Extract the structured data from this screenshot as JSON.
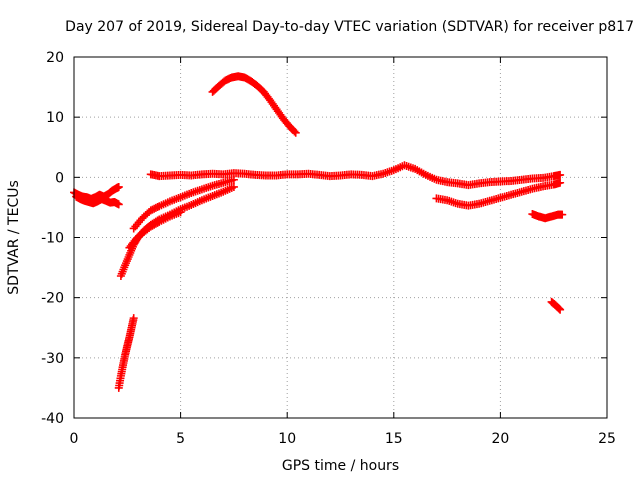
{
  "chart_data": {
    "type": "scatter",
    "title": "Day 207 of 2019, Sidereal Day-to-day VTEC variation (SDTVAR) for receiver p817",
    "xlabel": "GPS time / hours",
    "ylabel": "SDTVAR / TECUs",
    "xlim": [
      0,
      25
    ],
    "ylim": [
      -40,
      20
    ],
    "xticks": [
      0,
      5,
      10,
      15,
      20,
      25
    ],
    "yticks": [
      -40,
      -30,
      -20,
      -10,
      0,
      10,
      20
    ],
    "grid": true,
    "marker": "+",
    "color": "#ff0000",
    "series": [
      {
        "name": "segment-early-left",
        "points": [
          [
            0.0,
            -2.5
          ],
          [
            0.2,
            -2.9
          ],
          [
            0.4,
            -3.2
          ],
          [
            0.6,
            -3.3
          ],
          [
            0.8,
            -3.6
          ],
          [
            1.0,
            -3.3
          ],
          [
            1.2,
            -2.9
          ],
          [
            1.4,
            -3.2
          ],
          [
            1.6,
            -2.8
          ],
          [
            1.8,
            -2.2
          ],
          [
            2.0,
            -1.8
          ],
          [
            2.1,
            -1.6
          ],
          [
            0.1,
            -3.2
          ],
          [
            0.3,
            -3.6
          ],
          [
            0.5,
            -3.9
          ],
          [
            0.7,
            -4.1
          ],
          [
            0.9,
            -4.3
          ],
          [
            1.1,
            -4.0
          ],
          [
            1.3,
            -3.6
          ],
          [
            1.5,
            -3.9
          ],
          [
            1.7,
            -4.2
          ],
          [
            1.9,
            -4.1
          ],
          [
            2.1,
            -4.5
          ]
        ]
      },
      {
        "name": "segment-long-flat",
        "points": [
          [
            3.6,
            0.5
          ],
          [
            4.0,
            0.2
          ],
          [
            4.5,
            0.3
          ],
          [
            5.0,
            0.4
          ],
          [
            5.5,
            0.3
          ],
          [
            6.0,
            0.5
          ],
          [
            6.5,
            0.6
          ],
          [
            7.0,
            0.5
          ],
          [
            7.5,
            0.7
          ],
          [
            8.0,
            0.6
          ],
          [
            8.5,
            0.4
          ],
          [
            9.0,
            0.3
          ],
          [
            9.5,
            0.3
          ],
          [
            10.0,
            0.5
          ],
          [
            10.5,
            0.5
          ],
          [
            11.0,
            0.6
          ],
          [
            11.5,
            0.4
          ],
          [
            12.0,
            0.2
          ],
          [
            12.5,
            0.3
          ],
          [
            13.0,
            0.5
          ],
          [
            13.5,
            0.4
          ],
          [
            14.0,
            0.2
          ],
          [
            14.5,
            0.6
          ],
          [
            15.0,
            1.2
          ],
          [
            15.5,
            2.0
          ],
          [
            16.0,
            1.4
          ],
          [
            16.5,
            0.4
          ],
          [
            17.0,
            -0.4
          ],
          [
            17.5,
            -0.8
          ],
          [
            18.0,
            -1.0
          ],
          [
            18.5,
            -1.3
          ],
          [
            19.0,
            -1.0
          ],
          [
            19.5,
            -0.8
          ],
          [
            20.0,
            -0.7
          ],
          [
            20.5,
            -0.6
          ],
          [
            21.0,
            -0.4
          ],
          [
            21.5,
            -0.2
          ],
          [
            22.0,
            -0.1
          ],
          [
            22.5,
            0.2
          ],
          [
            22.8,
            0.4
          ]
        ]
      },
      {
        "name": "segment-arc",
        "points": [
          [
            6.5,
            14.2
          ],
          [
            6.8,
            15.2
          ],
          [
            7.1,
            16.1
          ],
          [
            7.4,
            16.6
          ],
          [
            7.7,
            16.8
          ],
          [
            8.0,
            16.6
          ],
          [
            8.3,
            16.0
          ],
          [
            8.6,
            15.2
          ],
          [
            8.9,
            14.2
          ],
          [
            9.2,
            12.8
          ],
          [
            9.5,
            11.3
          ],
          [
            9.8,
            9.8
          ],
          [
            10.1,
            8.5
          ],
          [
            10.4,
            7.4
          ]
        ]
      },
      {
        "name": "segment-rise-early",
        "points": [
          [
            2.2,
            -16.4
          ],
          [
            2.4,
            -14.6
          ],
          [
            2.6,
            -12.9
          ],
          [
            2.8,
            -11.2
          ],
          [
            3.0,
            -10.0
          ],
          [
            3.3,
            -8.8
          ],
          [
            3.6,
            -7.9
          ],
          [
            4.0,
            -7.0
          ],
          [
            4.5,
            -6.2
          ],
          [
            5.0,
            -5.3
          ],
          [
            5.5,
            -4.6
          ],
          [
            6.0,
            -3.8
          ],
          [
            6.5,
            -3.1
          ],
          [
            7.0,
            -2.4
          ],
          [
            7.5,
            -1.6
          ],
          [
            2.6,
            -11.7
          ],
          [
            2.9,
            -10.3
          ],
          [
            3.2,
            -9.3
          ],
          [
            3.6,
            -8.2
          ],
          [
            4.0,
            -7.4
          ],
          [
            4.5,
            -6.5
          ],
          [
            5.0,
            -5.8
          ]
        ]
      },
      {
        "name": "segment-upper-rise",
        "points": [
          [
            2.8,
            -8.5
          ],
          [
            3.2,
            -6.8
          ],
          [
            3.6,
            -5.5
          ],
          [
            4.0,
            -4.8
          ],
          [
            4.5,
            -4.0
          ],
          [
            5.0,
            -3.3
          ],
          [
            5.5,
            -2.6
          ],
          [
            6.0,
            -2.0
          ],
          [
            6.5,
            -1.4
          ],
          [
            7.0,
            -0.9
          ],
          [
            7.5,
            -0.4
          ]
        ]
      },
      {
        "name": "segment-deep-drop",
        "points": [
          [
            2.1,
            -35.0
          ],
          [
            2.2,
            -33.0
          ],
          [
            2.3,
            -31.2
          ],
          [
            2.4,
            -29.5
          ],
          [
            2.5,
            -28.0
          ],
          [
            2.6,
            -26.6
          ],
          [
            2.7,
            -25.0
          ],
          [
            2.8,
            -23.4
          ]
        ]
      },
      {
        "name": "segment-late-lower",
        "points": [
          [
            17.0,
            -3.5
          ],
          [
            17.5,
            -3.8
          ],
          [
            18.0,
            -4.4
          ],
          [
            18.5,
            -4.7
          ],
          [
            19.0,
            -4.4
          ],
          [
            19.5,
            -3.9
          ],
          [
            20.0,
            -3.4
          ],
          [
            20.5,
            -2.9
          ],
          [
            21.0,
            -2.4
          ],
          [
            21.5,
            -1.9
          ],
          [
            22.0,
            -1.5
          ],
          [
            22.5,
            -1.2
          ],
          [
            22.8,
            -0.9
          ]
        ]
      },
      {
        "name": "segment-late-mid",
        "points": [
          [
            21.5,
            -6.1
          ],
          [
            21.8,
            -6.5
          ],
          [
            22.1,
            -6.8
          ],
          [
            22.4,
            -6.5
          ],
          [
            22.7,
            -6.2
          ],
          [
            22.9,
            -6.2
          ]
        ]
      },
      {
        "name": "segment-late-drop",
        "points": [
          [
            22.4,
            -20.7
          ],
          [
            22.6,
            -21.3
          ],
          [
            22.8,
            -22.0
          ]
        ]
      }
    ]
  }
}
